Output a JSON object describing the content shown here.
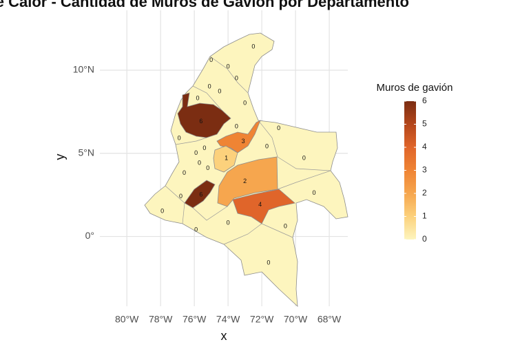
{
  "chart_data": {
    "type": "choropleth",
    "title": "Mapa de Calor - Cantidad de Muros de Gavión por Departamento",
    "x_label": "x",
    "y_label": "y",
    "legend_title": "Muros de gavión",
    "xlim": [
      -81.6,
      -66.9
    ],
    "ylim": [
      -4.2,
      13.6
    ],
    "xticks": [
      {
        "value": -80,
        "label": "80°W"
      },
      {
        "value": -78,
        "label": "78°W"
      },
      {
        "value": -76,
        "label": "76°W"
      },
      {
        "value": -74,
        "label": "74°W"
      },
      {
        "value": -72,
        "label": "72°W"
      },
      {
        "value": -70,
        "label": "70°W"
      },
      {
        "value": -68,
        "label": "68°W"
      }
    ],
    "yticks": [
      {
        "value": 0,
        "label": "0°"
      },
      {
        "value": 5,
        "label": "5°N"
      },
      {
        "value": 10,
        "label": "10°N"
      }
    ],
    "color_limits": [
      0,
      6
    ],
    "color_ticks": [
      0,
      1,
      2,
      3,
      4,
      5,
      6
    ],
    "colors": [
      "#fdf5be",
      "#fcd17c",
      "#f6a64e",
      "#ef8434",
      "#e0652a",
      "#b4461b",
      "#7b2d12"
    ],
    "grid": true,
    "legend_position": "right",
    "regions": [
      {
        "value": 0,
        "lon": -72.5,
        "lat": 11.4
      },
      {
        "value": 0,
        "lon": -75.0,
        "lat": 10.6
      },
      {
        "value": 0,
        "lon": -74.0,
        "lat": 10.2
      },
      {
        "value": 0,
        "lon": -73.5,
        "lat": 9.5
      },
      {
        "value": 0,
        "lon": -75.1,
        "lat": 9.0
      },
      {
        "value": 0,
        "lon": -74.5,
        "lat": 8.7
      },
      {
        "value": 0,
        "lon": -75.8,
        "lat": 8.3
      },
      {
        "value": 0,
        "lon": -73.0,
        "lat": 8.0
      },
      {
        "value": 6,
        "lon": -75.6,
        "lat": 6.9
      },
      {
        "value": 0,
        "lon": -73.5,
        "lat": 6.6
      },
      {
        "value": 0,
        "lon": -71.0,
        "lat": 6.5
      },
      {
        "value": 0,
        "lon": -76.9,
        "lat": 5.9
      },
      {
        "value": 3,
        "lon": -73.1,
        "lat": 5.7
      },
      {
        "value": 0,
        "lon": -71.7,
        "lat": 5.4
      },
      {
        "value": 0,
        "lon": -75.4,
        "lat": 5.3
      },
      {
        "value": 0,
        "lon": -75.9,
        "lat": 5.0
      },
      {
        "value": 1,
        "lon": -74.1,
        "lat": 4.7
      },
      {
        "value": 0,
        "lon": -69.5,
        "lat": 4.7
      },
      {
        "value": 0,
        "lon": -75.7,
        "lat": 4.4
      },
      {
        "value": 0,
        "lon": -75.2,
        "lat": 4.1
      },
      {
        "value": 0,
        "lon": -76.6,
        "lat": 3.8
      },
      {
        "value": 2,
        "lon": -73.0,
        "lat": 3.3
      },
      {
        "value": 0,
        "lon": -76.8,
        "lat": 2.4
      },
      {
        "value": 6,
        "lon": -75.6,
        "lat": 2.5
      },
      {
        "value": 0,
        "lon": -68.9,
        "lat": 2.6
      },
      {
        "value": 4,
        "lon": -72.1,
        "lat": 1.9
      },
      {
        "value": 0,
        "lon": -77.9,
        "lat": 1.5
      },
      {
        "value": 0,
        "lon": -74.0,
        "lat": 0.8
      },
      {
        "value": 0,
        "lon": -75.9,
        "lat": 0.4
      },
      {
        "value": 0,
        "lon": -70.6,
        "lat": 0.6
      },
      {
        "value": 0,
        "lon": -71.6,
        "lat": -1.6
      }
    ]
  }
}
